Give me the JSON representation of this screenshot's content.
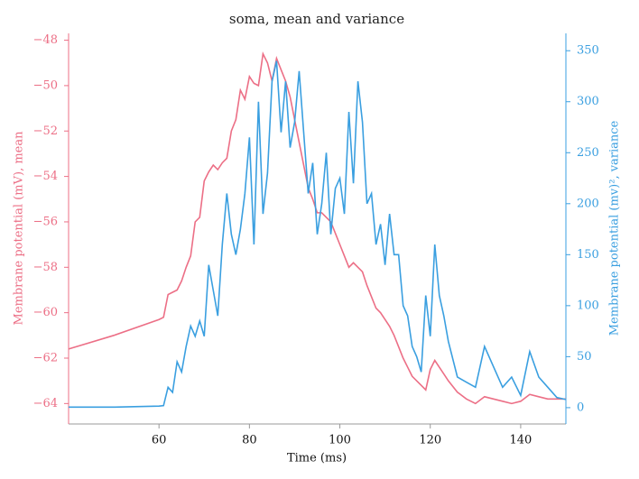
{
  "chart_data": {
    "type": "line",
    "title": "soma, mean and variance",
    "xlabel": "Time (ms)",
    "ylabel": "Membrane potential (mV), mean",
    "y2label": "Membrane potential (mv)², variance",
    "x": [
      40,
      50,
      60,
      61,
      62,
      63,
      64,
      65,
      66,
      67,
      68,
      69,
      70,
      71,
      72,
      73,
      74,
      75,
      76,
      77,
      78,
      79,
      80,
      81,
      82,
      83,
      84,
      85,
      86,
      87,
      88,
      89,
      90,
      91,
      92,
      93,
      94,
      95,
      96,
      97,
      98,
      99,
      100,
      101,
      102,
      103,
      104,
      105,
      106,
      107,
      108,
      109,
      110,
      111,
      112,
      113,
      114,
      115,
      116,
      117,
      118,
      119,
      120,
      121,
      122,
      123,
      124,
      126,
      128,
      130,
      132,
      134,
      136,
      138,
      140,
      142,
      144,
      146,
      148,
      150
    ],
    "series": [
      {
        "name": "mean",
        "color": "#ec6f86",
        "axis": "y",
        "values": [
          -61.6,
          -61.0,
          -60.3,
          -60.2,
          -59.2,
          -59.1,
          -59.0,
          -58.6,
          -58.0,
          -57.5,
          -56.0,
          -55.8,
          -54.2,
          -53.8,
          -53.5,
          -53.7,
          -53.4,
          -53.2,
          -52.0,
          -51.5,
          -50.2,
          -50.6,
          -49.6,
          -49.9,
          -50.0,
          -48.6,
          -49.0,
          -49.8,
          -48.8,
          -49.3,
          -49.8,
          -50.5,
          -51.5,
          -52.5,
          -53.5,
          -54.5,
          -55.0,
          -55.6,
          -55.6,
          -55.8,
          -56.0,
          -56.5,
          -57.0,
          -57.5,
          -58.0,
          -57.8,
          -58.0,
          -58.2,
          -58.8,
          -59.3,
          -59.8,
          -60.0,
          -60.3,
          -60.6,
          -61.0,
          -61.5,
          -62.0,
          -62.4,
          -62.8,
          -63.0,
          -63.2,
          -63.4,
          -62.5,
          -62.1,
          -62.4,
          -62.7,
          -63.0,
          -63.5,
          -63.8,
          -64.0,
          -63.7,
          -63.8,
          -63.9,
          -64.0,
          -63.9,
          -63.6,
          -63.7,
          -63.8,
          -63.8,
          -63.8
        ]
      },
      {
        "name": "variance",
        "color": "#3a9fe0",
        "axis": "y2",
        "values": [
          0.5,
          0.5,
          1.5,
          2,
          20,
          15,
          45,
          35,
          60,
          80,
          70,
          85,
          70,
          140,
          115,
          90,
          160,
          210,
          170,
          150,
          175,
          210,
          265,
          160,
          300,
          190,
          230,
          320,
          340,
          270,
          320,
          255,
          280,
          330,
          270,
          210,
          240,
          170,
          200,
          250,
          170,
          215,
          225,
          190,
          290,
          220,
          320,
          280,
          200,
          210,
          160,
          180,
          140,
          190,
          150,
          150,
          100,
          90,
          60,
          50,
          35,
          110,
          70,
          160,
          110,
          90,
          65,
          30,
          25,
          20,
          60,
          40,
          20,
          30,
          12,
          55,
          30,
          20,
          10,
          8
        ]
      }
    ],
    "xlim": [
      40,
      150
    ],
    "xticks": [
      60,
      80,
      100,
      120,
      140
    ],
    "ylim": [
      -64.9,
      -47.7
    ],
    "yticks": [
      {
        "value": -48,
        "label": "−48"
      },
      {
        "value": -50,
        "label": "−50"
      },
      {
        "value": -52,
        "label": "−52"
      },
      {
        "value": -54,
        "label": "−54"
      },
      {
        "value": -56,
        "label": "−56"
      },
      {
        "value": -58,
        "label": "−58"
      },
      {
        "value": -60,
        "label": "−60"
      },
      {
        "value": -62,
        "label": "−62"
      },
      {
        "value": -64,
        "label": "−64"
      }
    ],
    "y2lim": [
      -16,
      367
    ],
    "y2ticks": [
      0,
      50,
      100,
      150,
      200,
      250,
      300,
      350
    ]
  }
}
